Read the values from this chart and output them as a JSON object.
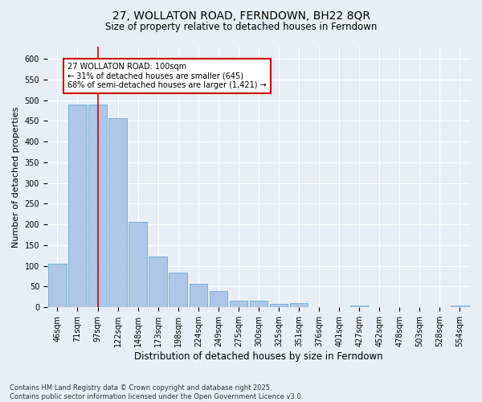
{
  "title": "27, WOLLATON ROAD, FERNDOWN, BH22 8QR",
  "subtitle": "Size of property relative to detached houses in Ferndown",
  "xlabel": "Distribution of detached houses by size in Ferndown",
  "ylabel": "Number of detached properties",
  "categories": [
    "46sqm",
    "71sqm",
    "97sqm",
    "122sqm",
    "148sqm",
    "173sqm",
    "198sqm",
    "224sqm",
    "249sqm",
    "275sqm",
    "300sqm",
    "325sqm",
    "351sqm",
    "376sqm",
    "401sqm",
    "427sqm",
    "452sqm",
    "478sqm",
    "503sqm",
    "528sqm",
    "554sqm"
  ],
  "values": [
    105,
    490,
    490,
    457,
    207,
    122,
    83,
    57,
    39,
    15,
    15,
    8,
    10,
    0,
    0,
    5,
    0,
    0,
    0,
    0,
    5
  ],
  "bar_color": "#aec6e8",
  "bar_edge_color": "#6aaed6",
  "marker_index": 2,
  "marker_color": "#cc0000",
  "ylim": [
    0,
    630
  ],
  "yticks": [
    0,
    50,
    100,
    150,
    200,
    250,
    300,
    350,
    400,
    450,
    500,
    550,
    600
  ],
  "annotation_text": "27 WOLLATON ROAD: 100sqm\n← 31% of detached houses are smaller (645)\n68% of semi-detached houses are larger (1,421) →",
  "annotation_box_color": "#ffffff",
  "annotation_box_edge_color": "#cc0000",
  "footer_line1": "Contains HM Land Registry data © Crown copyright and database right 2025.",
  "footer_line2": "Contains public sector information licensed under the Open Government Licence v3.0.",
  "background_color": "#e8eef6",
  "plot_bg_color": "#e8eef6",
  "grid_color": "#ffffff",
  "title_fontsize": 10,
  "subtitle_fontsize": 8.5,
  "ylabel_fontsize": 8,
  "xlabel_fontsize": 8.5,
  "tick_fontsize": 7,
  "annotation_fontsize": 7,
  "footer_fontsize": 6
}
